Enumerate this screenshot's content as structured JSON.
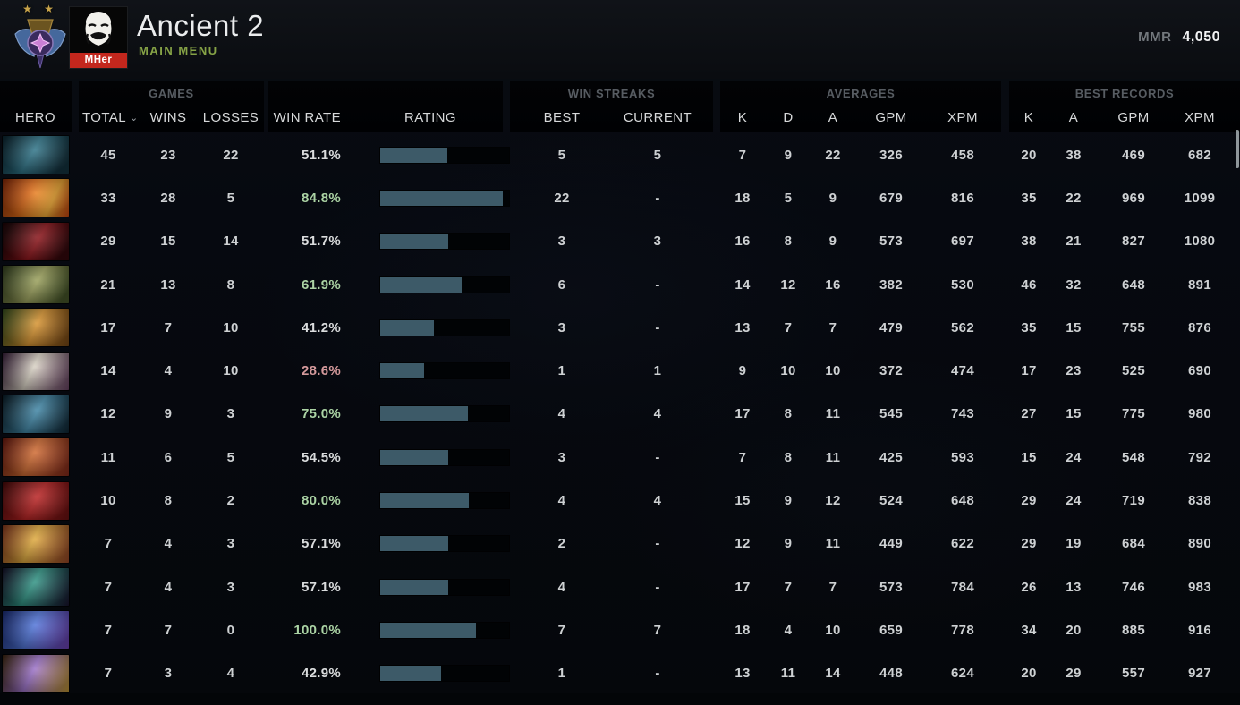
{
  "topbar": {
    "title": "Ancient 2",
    "subtitle": "MAIN MENU",
    "mmr_label": "MMR",
    "mmr_value": "4,050",
    "avatar_text": "MHer",
    "rank_medal": "ancient-rank-medal",
    "stars_text": "★ ★"
  },
  "colors": {
    "win_rate_high": "#abd3a4",
    "win_rate_low": "#d4999b",
    "rating_bar_fill": "#3d5a68",
    "subtitle_green": "#86a346",
    "accent_gold_stars": "#c8a44a",
    "avatar_band_red": "#c3271d"
  },
  "table": {
    "hero_col": "HERO",
    "sort_caret": "⌄",
    "groups": {
      "games": "GAMES",
      "win_streaks": "WIN STREAKS",
      "averages": "AVERAGES",
      "best_records": "BEST RECORDS"
    },
    "columns": {
      "total": "TOTAL",
      "wins": "WINS",
      "losses": "LOSSES",
      "win_rate": "WIN RATE",
      "rating": "RATING",
      "best": "BEST",
      "current": "CURRENT",
      "avg_k": "K",
      "avg_d": "D",
      "avg_a": "A",
      "avg_gpm": "GPM",
      "avg_xpm": "XPM",
      "rec_k": "K",
      "rec_a": "A",
      "rec_gpm": "GPM",
      "rec_xpm": "XPM"
    }
  },
  "rows": [
    {
      "icon": "spirit-breaker-icon",
      "total": "45",
      "wins": "23",
      "losses": "22",
      "win_rate": "51.1%",
      "win_rate_level": "mid",
      "rating_fill_pct": 52,
      "streak_best": "5",
      "streak_current": "5",
      "avg_k": "7",
      "avg_d": "9",
      "avg_a": "22",
      "avg_gpm": "326",
      "avg_xpm": "458",
      "best_k": "20",
      "best_a": "38",
      "best_gpm": "469",
      "best_xpm": "682"
    },
    {
      "icon": "lina-icon",
      "total": "33",
      "wins": "28",
      "losses": "5",
      "win_rate": "84.8%",
      "win_rate_level": "high",
      "rating_fill_pct": 95,
      "streak_best": "22",
      "streak_current": "-",
      "avg_k": "18",
      "avg_d": "5",
      "avg_a": "9",
      "avg_gpm": "679",
      "avg_xpm": "816",
      "best_k": "35",
      "best_a": "22",
      "best_gpm": "969",
      "best_xpm": "1099"
    },
    {
      "icon": "shadow-fiend-icon",
      "total": "29",
      "wins": "15",
      "losses": "14",
      "win_rate": "51.7%",
      "win_rate_level": "mid",
      "rating_fill_pct": 53,
      "streak_best": "3",
      "streak_current": "3",
      "avg_k": "16",
      "avg_d": "8",
      "avg_a": "9",
      "avg_gpm": "573",
      "avg_xpm": "697",
      "best_k": "38",
      "best_a": "21",
      "best_gpm": "827",
      "best_xpm": "1080"
    },
    {
      "icon": "pudge-icon",
      "total": "21",
      "wins": "13",
      "losses": "8",
      "win_rate": "61.9%",
      "win_rate_level": "high",
      "rating_fill_pct": 63,
      "streak_best": "6",
      "streak_current": "-",
      "avg_k": "14",
      "avg_d": "12",
      "avg_a": "16",
      "avg_gpm": "382",
      "avg_xpm": "530",
      "best_k": "46",
      "best_a": "32",
      "best_gpm": "648",
      "best_xpm": "891"
    },
    {
      "icon": "monkey-king-icon",
      "total": "17",
      "wins": "7",
      "losses": "10",
      "win_rate": "41.2%",
      "win_rate_level": "mid",
      "rating_fill_pct": 42,
      "streak_best": "3",
      "streak_current": "-",
      "avg_k": "13",
      "avg_d": "7",
      "avg_a": "7",
      "avg_gpm": "479",
      "avg_xpm": "562",
      "best_k": "35",
      "best_a": "15",
      "best_gpm": "755",
      "best_xpm": "876"
    },
    {
      "icon": "invoker-icon",
      "total": "14",
      "wins": "4",
      "losses": "10",
      "win_rate": "28.6%",
      "win_rate_level": "low",
      "rating_fill_pct": 34,
      "streak_best": "1",
      "streak_current": "1",
      "avg_k": "9",
      "avg_d": "10",
      "avg_a": "10",
      "avg_gpm": "372",
      "avg_xpm": "474",
      "best_k": "17",
      "best_a": "23",
      "best_gpm": "525",
      "best_xpm": "690"
    },
    {
      "icon": "phantom-assassin-icon",
      "total": "12",
      "wins": "9",
      "losses": "3",
      "win_rate": "75.0%",
      "win_rate_level": "high",
      "rating_fill_pct": 68,
      "streak_best": "4",
      "streak_current": "4",
      "avg_k": "17",
      "avg_d": "8",
      "avg_a": "11",
      "avg_gpm": "545",
      "avg_xpm": "743",
      "best_k": "27",
      "best_a": "15",
      "best_gpm": "775",
      "best_xpm": "980"
    },
    {
      "icon": "troll-warlord-icon",
      "total": "11",
      "wins": "6",
      "losses": "5",
      "win_rate": "54.5%",
      "win_rate_level": "mid",
      "rating_fill_pct": 53,
      "streak_best": "3",
      "streak_current": "-",
      "avg_k": "7",
      "avg_d": "8",
      "avg_a": "11",
      "avg_gpm": "425",
      "avg_xpm": "593",
      "best_k": "15",
      "best_a": "24",
      "best_gpm": "548",
      "best_xpm": "792"
    },
    {
      "icon": "bloodseeker-icon",
      "total": "10",
      "wins": "8",
      "losses": "2",
      "win_rate": "80.0%",
      "win_rate_level": "high",
      "rating_fill_pct": 69,
      "streak_best": "4",
      "streak_current": "4",
      "avg_k": "15",
      "avg_d": "9",
      "avg_a": "12",
      "avg_gpm": "524",
      "avg_xpm": "648",
      "best_k": "29",
      "best_a": "24",
      "best_gpm": "719",
      "best_xpm": "838"
    },
    {
      "icon": "legion-commander-icon",
      "total": "7",
      "wins": "4",
      "losses": "3",
      "win_rate": "57.1%",
      "win_rate_level": "mid",
      "rating_fill_pct": 53,
      "streak_best": "2",
      "streak_current": "-",
      "avg_k": "12",
      "avg_d": "9",
      "avg_a": "11",
      "avg_gpm": "449",
      "avg_xpm": "622",
      "best_k": "29",
      "best_a": "19",
      "best_gpm": "684",
      "best_xpm": "890"
    },
    {
      "icon": "outworld-destroyer-icon",
      "total": "7",
      "wins": "4",
      "losses": "3",
      "win_rate": "57.1%",
      "win_rate_level": "mid",
      "rating_fill_pct": 53,
      "streak_best": "4",
      "streak_current": "-",
      "avg_k": "17",
      "avg_d": "7",
      "avg_a": "7",
      "avg_gpm": "573",
      "avg_xpm": "784",
      "best_k": "26",
      "best_a": "13",
      "best_gpm": "746",
      "best_xpm": "983"
    },
    {
      "icon": "puck-icon",
      "total": "7",
      "wins": "7",
      "losses": "0",
      "win_rate": "100.0%",
      "win_rate_level": "high",
      "rating_fill_pct": 74,
      "streak_best": "7",
      "streak_current": "7",
      "avg_k": "18",
      "avg_d": "4",
      "avg_a": "10",
      "avg_gpm": "659",
      "avg_xpm": "778",
      "best_k": "34",
      "best_a": "20",
      "best_gpm": "885",
      "best_xpm": "916"
    },
    {
      "icon": "alchemist-icon",
      "total": "7",
      "wins": "3",
      "losses": "4",
      "win_rate": "42.9%",
      "win_rate_level": "mid",
      "rating_fill_pct": 47,
      "streak_best": "1",
      "streak_current": "-",
      "avg_k": "13",
      "avg_d": "11",
      "avg_a": "14",
      "avg_gpm": "448",
      "avg_xpm": "624",
      "best_k": "20",
      "best_a": "29",
      "best_gpm": "557",
      "best_xpm": "927"
    }
  ]
}
